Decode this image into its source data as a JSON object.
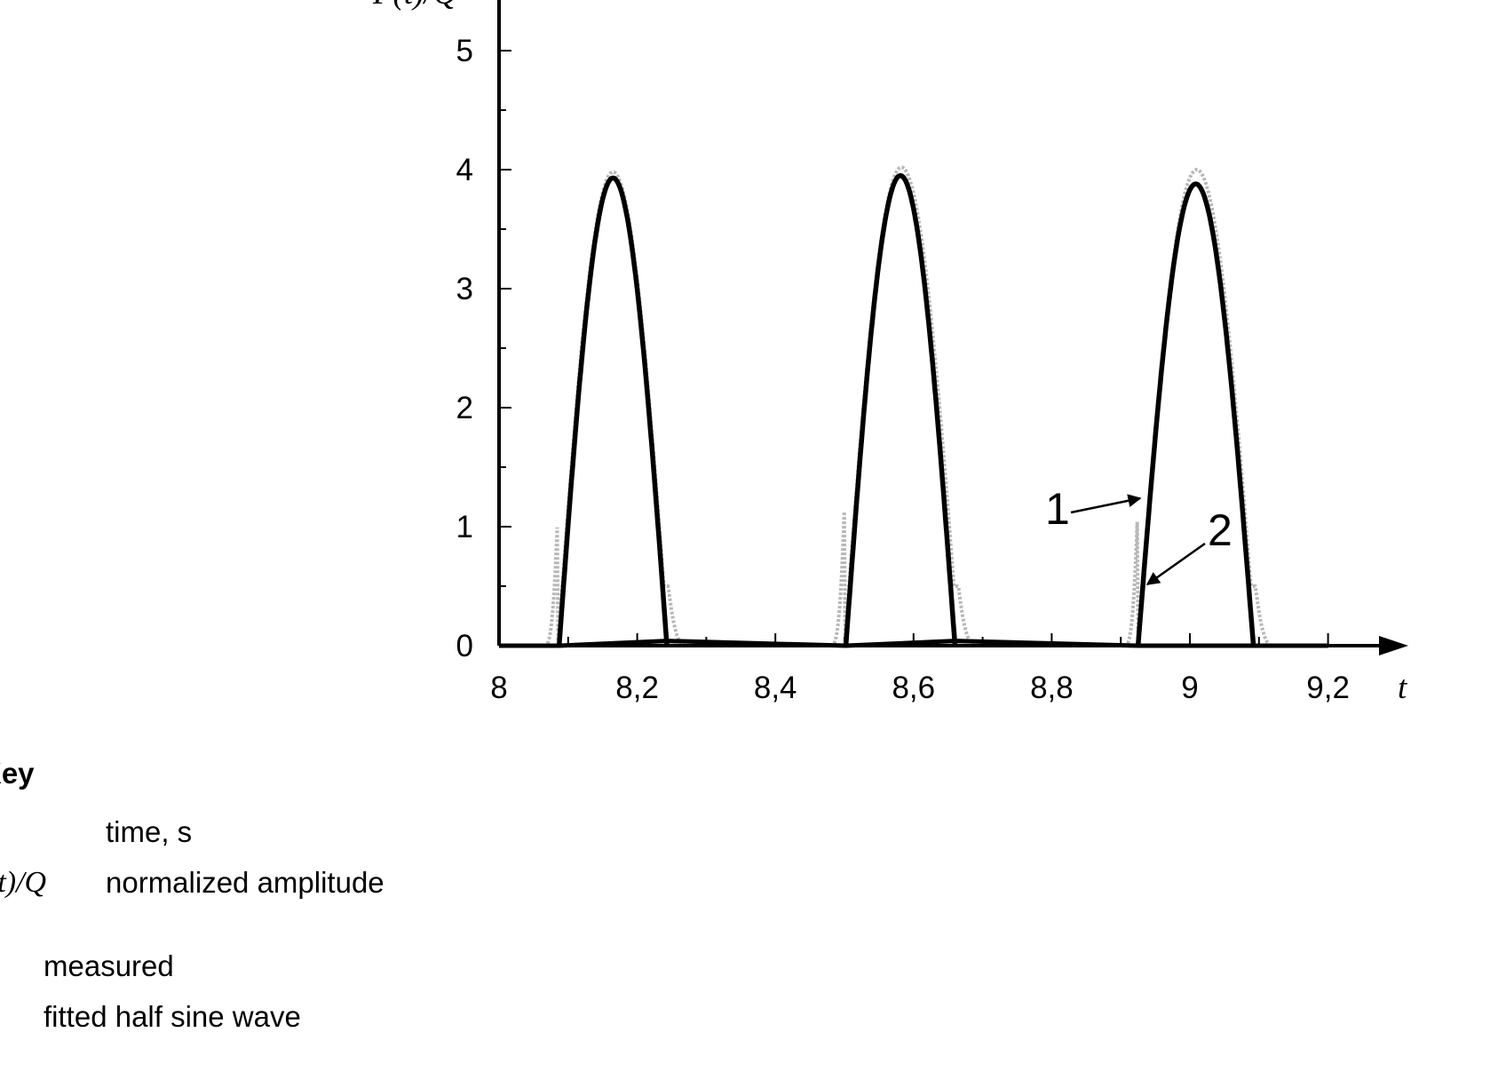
{
  "chart_data": {
    "type": "line",
    "title": "",
    "xlabel": "t",
    "ylabel": "F(t)/Q",
    "xlim": [
      8,
      9.25
    ],
    "ylim": [
      0,
      5.4
    ],
    "x_ticks": [
      "8",
      "8,2",
      "8,4",
      "8,6",
      "8,8",
      "9",
      "9,2"
    ],
    "x_tick_values": [
      8,
      8.2,
      8.4,
      8.6,
      8.8,
      9,
      9.2
    ],
    "y_ticks": [
      "0",
      "1",
      "2",
      "3",
      "4",
      "5"
    ],
    "y_tick_values": [
      0,
      1,
      2,
      3,
      4,
      5
    ],
    "grid": false,
    "series": [
      {
        "name": "1",
        "style": "dotted",
        "color": "#b8b8b8",
        "pulses": [
          {
            "start": 8.065,
            "end": 8.27,
            "peak_t": 8.165,
            "peak": 3.98,
            "spike": 1.12
          },
          {
            "start": 8.48,
            "end": 8.69,
            "peak_t": 8.58,
            "peak": 4.02,
            "spike": 1.18
          },
          {
            "start": 8.905,
            "end": 9.12,
            "peak_t": 9.01,
            "peak": 4.0,
            "spike": 1.25
          }
        ]
      },
      {
        "name": "2",
        "style": "solid",
        "color": "#000000",
        "pulses": [
          {
            "start": 8.087,
            "end": 8.243,
            "peak": 3.93
          },
          {
            "start": 8.502,
            "end": 8.66,
            "peak": 3.95
          },
          {
            "start": 8.925,
            "end": 9.092,
            "peak": 3.88
          }
        ],
        "baseline": [
          [
            8,
            0
          ],
          [
            8.087,
            0
          ],
          [
            8.243,
            0.04
          ],
          [
            8.502,
            0
          ],
          [
            8.66,
            0.04
          ],
          [
            8.925,
            0
          ],
          [
            9.092,
            0
          ],
          [
            9.2,
            0
          ]
        ]
      }
    ],
    "annotations": [
      {
        "label": "1",
        "target": "series 1"
      },
      {
        "label": "2",
        "target": "series 2"
      }
    ]
  },
  "key": {
    "heading": "Key",
    "items": [
      {
        "symbol": "",
        "text": "time, s"
      },
      {
        "symbol": "(t)/Q",
        "text": "normalized amplitude"
      },
      {
        "symbol": "",
        "text": "measured"
      },
      {
        "symbol": "",
        "text": "fitted half sine wave"
      }
    ]
  }
}
